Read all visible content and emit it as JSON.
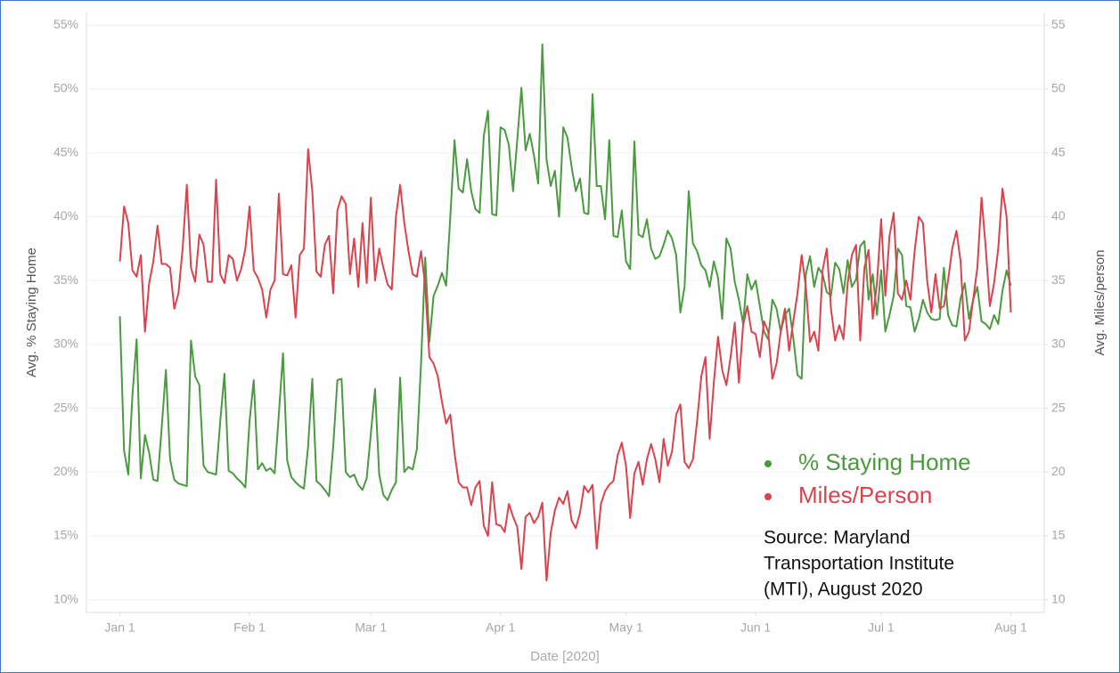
{
  "chart_data": {
    "type": "line",
    "y_label": "Avg. % Staying Home",
    "y2_label": "Avg. Miles/person",
    "x_label": "Date [2020]",
    "annotation": [
      "Source: Maryland",
      "Transportation Institute",
      "(MTI), August 2020"
    ],
    "grid": true,
    "legend": "lower right",
    "xlim": [
      -8,
      221
    ],
    "xticks": [
      {
        "value": 0,
        "label": "Jan 1"
      },
      {
        "value": 31,
        "label": "Feb 1"
      },
      {
        "value": 60,
        "label": "Mar 1"
      },
      {
        "value": 91,
        "label": "Apr 1"
      },
      {
        "value": 121,
        "label": "May 1"
      },
      {
        "value": 152,
        "label": "Jun 1"
      },
      {
        "value": 182,
        "label": "Jul 1"
      },
      {
        "value": 213,
        "label": "Aug 1"
      }
    ],
    "ylim": [
      9,
      56
    ],
    "yticks": [
      {
        "value": 10,
        "label": "10%"
      },
      {
        "value": 15,
        "label": "15%"
      },
      {
        "value": 20,
        "label": "20%"
      },
      {
        "value": 25,
        "label": "25%"
      },
      {
        "value": 30,
        "label": "30%"
      },
      {
        "value": 35,
        "label": "35%"
      },
      {
        "value": 40,
        "label": "40%"
      },
      {
        "value": 45,
        "label": "45%"
      },
      {
        "value": 50,
        "label": "50%"
      },
      {
        "value": 55,
        "label": "55%"
      }
    ],
    "y2lim": [
      9,
      56
    ],
    "y2ticks": [
      10,
      15,
      20,
      25,
      30,
      35,
      40,
      45,
      50,
      55
    ],
    "x": [
      0,
      1,
      2,
      3,
      4,
      5,
      6,
      7,
      8,
      9,
      10,
      11,
      12,
      13,
      14,
      15,
      16,
      17,
      18,
      19,
      20,
      21,
      22,
      23,
      24,
      25,
      26,
      27,
      28,
      29,
      30,
      31,
      32,
      33,
      34,
      35,
      36,
      37,
      38,
      39,
      40,
      41,
      42,
      43,
      44,
      45,
      46,
      47,
      48,
      49,
      50,
      51,
      52,
      53,
      54,
      55,
      56,
      57,
      58,
      59,
      60,
      61,
      62,
      63,
      64,
      65,
      66,
      67,
      68,
      69,
      70,
      71,
      72,
      73,
      74,
      75,
      76,
      77,
      78,
      79,
      80,
      81,
      82,
      83,
      84,
      85,
      86,
      87,
      88,
      89,
      90,
      91,
      92,
      93,
      94,
      95,
      96,
      97,
      98,
      99,
      100,
      101,
      102,
      103,
      104,
      105,
      106,
      107,
      108,
      109,
      110,
      111,
      112,
      113,
      114,
      115,
      116,
      117,
      118,
      119,
      120,
      121,
      122,
      123,
      124,
      125,
      126,
      127,
      128,
      129,
      130,
      131,
      132,
      133,
      134,
      135,
      136,
      137,
      138,
      139,
      140,
      141,
      142,
      143,
      144,
      145,
      146,
      147,
      148,
      149,
      150,
      151,
      152,
      153,
      154,
      155,
      156,
      157,
      158,
      159,
      160,
      161,
      162,
      163,
      164,
      165,
      166,
      167,
      168,
      169,
      170,
      171,
      172,
      173,
      174,
      175,
      176,
      177,
      178,
      179,
      180,
      181,
      182,
      183,
      184,
      185,
      186,
      187,
      188,
      189,
      190,
      191,
      192,
      193,
      194,
      195,
      196,
      197,
      198,
      199,
      200,
      201,
      202,
      203,
      204,
      205,
      206,
      207,
      208,
      209,
      210,
      211,
      212,
      213
    ],
    "series": [
      {
        "name": "% Staying Home",
        "color": "#4a9a3f",
        "axis": "y",
        "values": [
          32.2,
          21.7,
          19.8,
          26.0,
          30.4,
          19.5,
          22.9,
          21.5,
          19.4,
          19.3,
          23.5,
          28.0,
          21.0,
          19.4,
          19.1,
          19.0,
          18.9,
          30.3,
          27.5,
          26.8,
          20.5,
          20.0,
          19.9,
          19.8,
          24.0,
          27.7,
          20.1,
          19.9,
          19.5,
          19.2,
          18.8,
          24.0,
          27.2,
          20.2,
          20.7,
          20.1,
          20.3,
          19.9,
          24.5,
          29.3,
          20.9,
          19.6,
          19.2,
          18.9,
          18.7,
          22.0,
          27.3,
          19.3,
          19.0,
          18.6,
          18.1,
          22.0,
          27.2,
          27.3,
          20.0,
          19.6,
          19.8,
          19.0,
          18.6,
          19.5,
          23.0,
          26.5,
          19.8,
          18.2,
          17.8,
          18.6,
          19.2,
          27.4,
          20.0,
          20.4,
          20.2,
          21.8,
          28.5,
          36.8,
          30.2,
          33.8,
          34.6,
          35.6,
          34.6,
          40.0,
          46.0,
          42.2,
          41.9,
          44.5,
          42.0,
          40.6,
          40.3,
          46.3,
          48.3,
          40.2,
          40.1,
          47.0,
          46.8,
          45.6,
          42.0,
          46.0,
          50.1,
          45.2,
          46.5,
          44.8,
          42.6,
          53.5,
          44.5,
          42.4,
          43.6,
          40.0,
          47.0,
          46.2,
          43.9,
          42.0,
          43.0,
          40.3,
          40.2,
          49.6,
          42.4,
          42.4,
          39.8,
          46.0,
          38.5,
          38.4,
          40.5,
          36.5,
          35.9,
          45.9,
          38.6,
          38.4,
          39.8,
          37.5,
          36.7,
          36.9,
          37.8,
          38.9,
          38.3,
          37.0,
          32.5,
          34.5,
          42.0,
          37.9,
          37.3,
          36.2,
          35.8,
          34.5,
          36.5,
          35.2,
          32.0,
          38.3,
          37.5,
          34.9,
          33.5,
          31.6,
          35.5,
          34.3,
          35.0,
          33.0,
          31.0,
          30.4,
          33.5,
          32.8,
          31.0,
          32.3,
          32.8,
          30.5,
          27.6,
          27.3,
          35.5,
          36.9,
          34.5,
          36.0,
          35.5,
          34.1,
          33.8,
          36.4,
          35.9,
          34.0,
          36.6,
          34.5,
          35.1,
          37.7,
          38.1,
          33.5,
          35.5,
          32.3,
          35.8,
          31.0,
          32.3,
          33.8,
          37.5,
          37.0,
          33.0,
          32.9,
          31.0,
          32.0,
          33.5,
          32.5,
          32.0,
          31.9,
          32.0,
          36.0,
          32.3,
          31.5,
          31.4,
          33.6,
          34.8,
          32.0,
          33.5,
          34.5,
          31.8,
          31.6,
          31.2,
          32.3,
          31.6,
          34.2,
          35.8,
          34.6
        ]
      },
      {
        "name": "Miles/Person",
        "color": "#d9434e",
        "axis": "y2",
        "values": [
          36.5,
          40.8,
          39.5,
          35.8,
          35.3,
          37.0,
          31.0,
          34.8,
          36.5,
          39.3,
          36.3,
          36.3,
          36.0,
          32.8,
          34.0,
          37.5,
          42.5,
          36.0,
          34.9,
          38.6,
          37.8,
          34.9,
          34.9,
          42.9,
          35.5,
          34.8,
          37.0,
          36.7,
          35.0,
          35.9,
          37.5,
          40.8,
          35.8,
          35.2,
          34.3,
          32.1,
          34.3,
          35.0,
          41.8,
          35.5,
          35.4,
          36.2,
          32.1,
          37.0,
          37.5,
          45.3,
          42.0,
          35.7,
          35.3,
          37.8,
          38.5,
          34.0,
          40.5,
          41.6,
          41.0,
          35.5,
          38.3,
          34.5,
          39.5,
          34.8,
          41.5,
          35.0,
          37.5,
          36.0,
          34.7,
          34.3,
          40.0,
          42.5,
          39.5,
          37.3,
          35.5,
          35.3,
          37.3,
          34.6,
          29.0,
          28.5,
          27.5,
          25.5,
          23.8,
          24.5,
          21.5,
          19.2,
          18.8,
          18.8,
          17.4,
          18.8,
          19.3,
          15.8,
          15.0,
          19.2,
          15.9,
          15.8,
          15.3,
          17.5,
          16.5,
          15.7,
          12.4,
          16.5,
          16.8,
          16.0,
          16.5,
          17.6,
          11.5,
          15.2,
          17.0,
          18.0,
          17.5,
          18.5,
          16.2,
          15.6,
          16.8,
          18.9,
          18.4,
          19.0,
          14.0,
          17.5,
          18.5,
          19.0,
          19.3,
          21.3,
          22.3,
          20.5,
          16.4,
          19.9,
          20.8,
          19.0,
          21.0,
          22.2,
          21.0,
          19.2,
          22.6,
          20.5,
          21.6,
          24.5,
          25.3,
          20.8,
          20.3,
          21.0,
          24.0,
          27.5,
          29.0,
          22.6,
          27.0,
          30.6,
          28.0,
          26.8,
          29.0,
          31.7,
          27.0,
          31.5,
          33.0,
          31.0,
          30.8,
          29.0,
          31.8,
          31.0,
          27.3,
          28.5,
          31.0,
          32.8,
          29.5,
          31.8,
          34.0,
          37.0,
          34.5,
          30.2,
          31.0,
          29.5,
          35.8,
          37.5,
          32.8,
          30.3,
          31.5,
          30.4,
          34.8,
          37.0,
          37.8,
          30.3,
          36.0,
          37.4,
          32.0,
          34.8,
          39.8,
          33.8,
          38.5,
          40.3,
          34.0,
          33.5,
          35.0,
          33.5,
          37.3,
          40.0,
          39.5,
          35.0,
          32.5,
          35.5,
          32.8,
          33.0,
          35.0,
          37.5,
          38.9,
          36.5,
          30.3,
          31.0,
          33.5,
          36.0,
          41.5,
          37.6,
          33.0,
          34.8,
          37.5,
          42.2,
          40.0,
          32.5
        ]
      }
    ]
  }
}
